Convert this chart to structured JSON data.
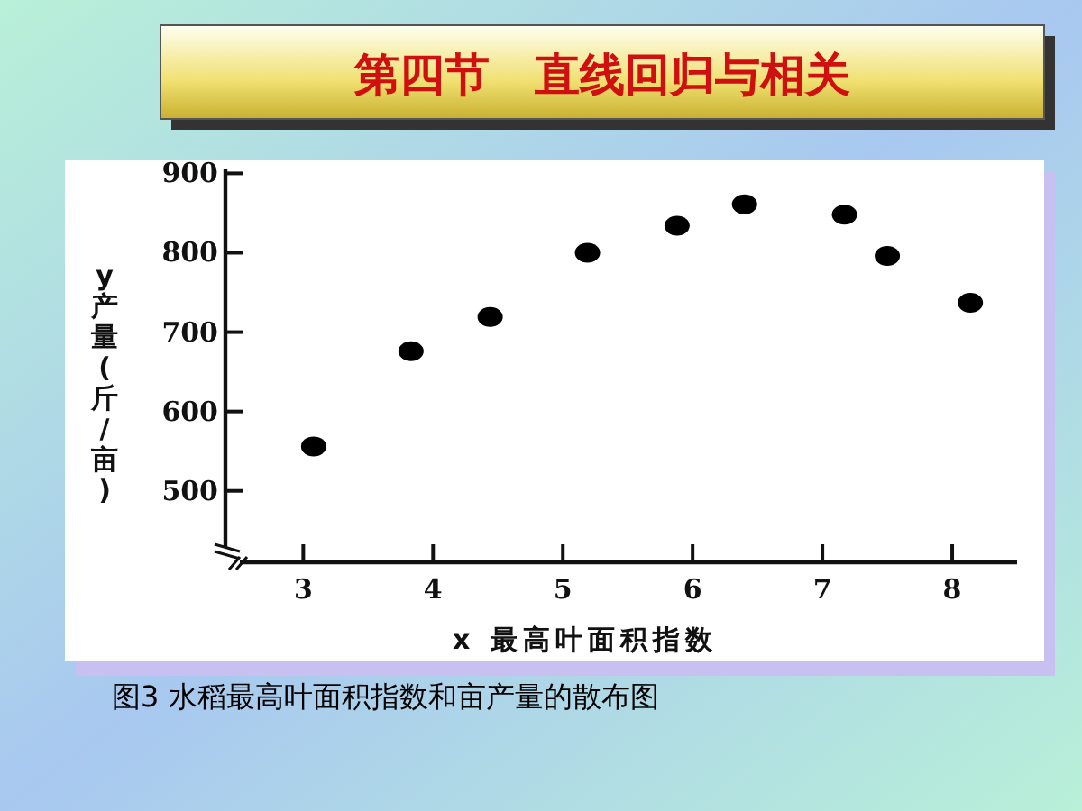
{
  "chart_data": {
    "type": "scatter",
    "title": "第四节　直线回归与相关",
    "xlabel": "x 最高叶面积指数",
    "ylabel": "y 产量 (斤/亩)",
    "annotations": [
      "图3 水稻最高叶面积指数和亩产量的散布图"
    ],
    "x": [
      3.08,
      3.83,
      4.44,
      5.19,
      5.88,
      6.4,
      7.17,
      7.5,
      8.14
    ],
    "series": [
      {
        "color": "#000000",
        "values": [
          556,
          676,
          719,
          800,
          834,
          861,
          848,
          796,
          737
        ]
      }
    ],
    "xlim": [
      2.4,
      8.5
    ],
    "xticks": [
      3,
      4,
      5,
      6,
      7,
      8
    ],
    "ylim": [
      410,
      905
    ],
    "yticks": [
      500,
      600,
      700,
      800,
      900
    ],
    "grid": false,
    "marker": "circle"
  }
}
